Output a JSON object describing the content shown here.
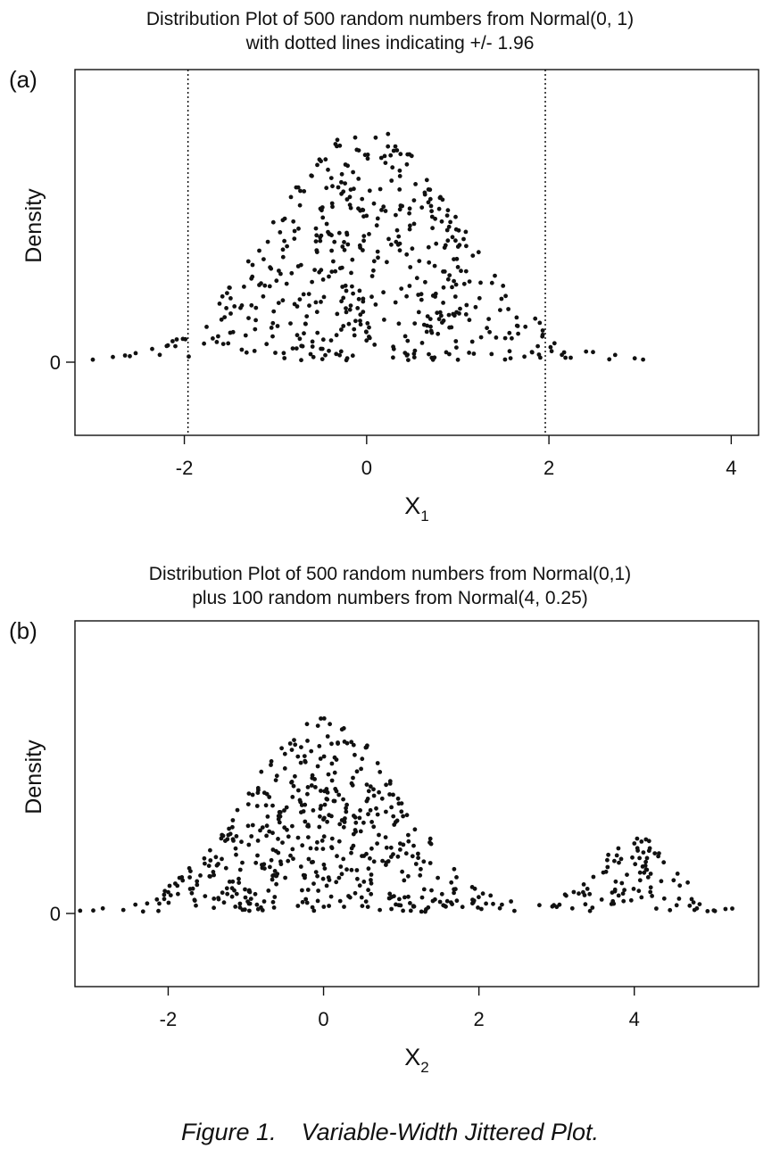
{
  "chart_data": [
    {
      "type": "scatter",
      "panel_label": "(a)",
      "title": [
        "Distribution Plot of 500 random numbers from Normal(0, 1)",
        "with dotted lines indicating +/- 1.96"
      ],
      "xlabel": "X",
      "xlabel_sub": "1",
      "ylabel": "Density",
      "xlim": [
        -3.2,
        4.3
      ],
      "ylim": [
        -0.125,
        0.5
      ],
      "xticks": [
        -2,
        0,
        2,
        4
      ],
      "yticks": [
        0
      ],
      "grid": false,
      "reference_lines": [
        -1.96,
        1.96
      ],
      "series": [
        {
          "name": "",
          "distribution": {
            "components": [
              {
                "n": 500,
                "mean": 0,
                "sd": 1
              }
            ]
          }
        }
      ]
    },
    {
      "type": "scatter",
      "panel_label": "(b)",
      "title": [
        "Distribution Plot of 500 random numbers from Normal(0,1)",
        "plus 100 random numbers from Normal(4, 0.25)"
      ],
      "xlabel": "X",
      "xlabel_sub": "2",
      "ylabel": "Density",
      "xlim": [
        -3.2,
        5.6
      ],
      "ylim": [
        -0.125,
        0.5
      ],
      "xticks": [
        -2,
        0,
        2,
        4
      ],
      "yticks": [
        0
      ],
      "grid": false,
      "reference_lines": [],
      "series": [
        {
          "name": "",
          "distribution": {
            "components": [
              {
                "n": 500,
                "mean": 0,
                "sd": 1
              },
              {
                "n": 100,
                "mean": 4,
                "sd": 0.5
              }
            ]
          }
        }
      ]
    }
  ],
  "caption": {
    "figure": "Figure 1.",
    "text": "Variable-Width Jittered Plot."
  }
}
